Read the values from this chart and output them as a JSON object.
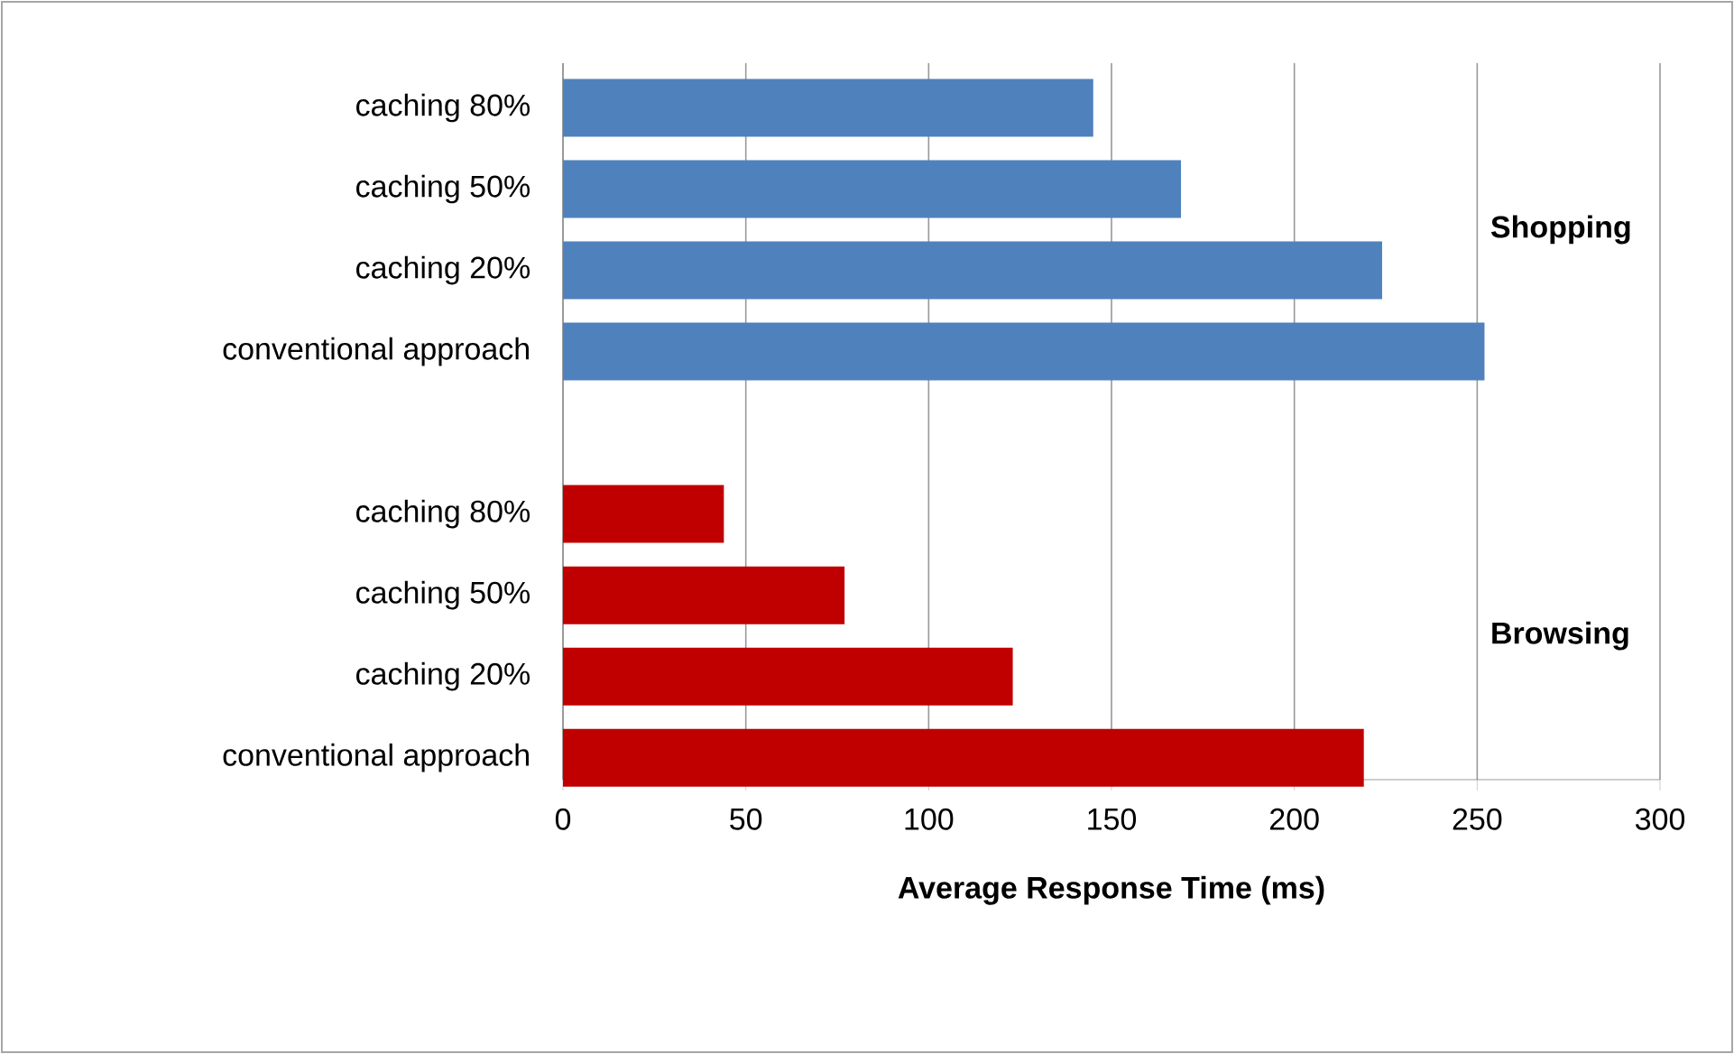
{
  "chart_data": {
    "type": "bar",
    "orientation": "horizontal",
    "xlabel": "Average Response Time (ms)",
    "categories": [
      "caching 80%",
      "caching 50%",
      "caching 20%",
      "conventional approach",
      null,
      "caching 80%",
      "caching 50%",
      "caching 20%",
      "conventional approach"
    ],
    "series": [
      {
        "name": "Shopping",
        "color": "#4f81bd",
        "values": [
          145,
          169,
          224,
          252,
          null,
          null,
          null,
          null,
          null
        ]
      },
      {
        "name": "Browsing",
        "color": "#c00000",
        "values": [
          null,
          null,
          null,
          null,
          null,
          44,
          77,
          123,
          219
        ]
      }
    ],
    "xlim": [
      0,
      300
    ],
    "xticks": [
      0,
      50,
      100,
      150,
      200,
      250,
      300
    ],
    "grid": "x"
  }
}
